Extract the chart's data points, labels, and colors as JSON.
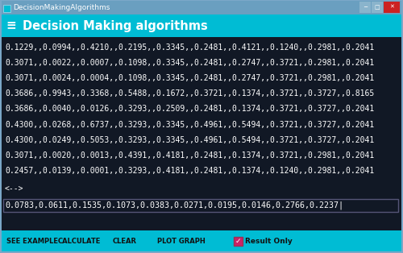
{
  "title_bar_text": "DecisionMakingAlgorithms",
  "header_text": "Decision Making algorithms",
  "header_bg": "#00BCD4",
  "title_bar_bg": "#5b8db8",
  "text_color": "#ffffff",
  "data_lines": [
    "0.1229,,0.0994,,0.4210,,0.2195,,0.3345,,0.2481,,0.4121,,0.1240,,0.2981,,0.2041",
    "0.3071,,0.0022,,0.0007,,0.1098,,0.3345,,0.2481,,0.2747,,0.3721,,0.2981,,0.2041",
    "0.3071,,0.0024,,0.0004,,0.1098,,0.3345,,0.2481,,0.2747,,0.3721,,0.2981,,0.2041",
    "0.3686,,0.9943,,0.3368,,0.5488,,0.1672,,0.3721,,0.1374,,0.3721,,0.3727,,0.8165",
    "0.3686,,0.0040,,0.0126,,0.3293,,0.2509,,0.2481,,0.1374,,0.3721,,0.3727,,0.2041",
    "0.4300,,0.0268,,0.6737,,0.3293,,0.3345,,0.4961,,0.5494,,0.3721,,0.3727,,0.2041",
    "0.4300,,0.0249,,0.5053,,0.3293,,0.3345,,0.4961,,0.5494,,0.3721,,0.3727,,0.2041",
    "0.3071,,0.0020,,0.0013,,0.4391,,0.4181,,0.2481,,0.1374,,0.3721,,0.2981,,0.2041",
    "0.2457,,0.0139,,0.0001,,0.3293,,0.4181,,0.2481,,0.1374,,0.1240,,0.2981,,0.2041"
  ],
  "separator": "<-->",
  "result_line": "0.0783,0.0611,0.1535,0.1073,0.0383,0.0271,0.0195,0.0146,0.2766,0.2237",
  "footer_buttons": [
    "SEE EXAMPLE",
    "CALCULATE",
    "CLEAR",
    "PLOT GRAPH"
  ],
  "footer_checkbox_label": "Result Only",
  "footer_bg": "#00BCD4",
  "data_font_size": 7.0,
  "result_font_size": 7.2,
  "header_font_size": 10.5,
  "title_font_size": 6.5,
  "btn_font_size": 6.0,
  "body_bg": "#1a1a2e",
  "content_bg": "#111122"
}
